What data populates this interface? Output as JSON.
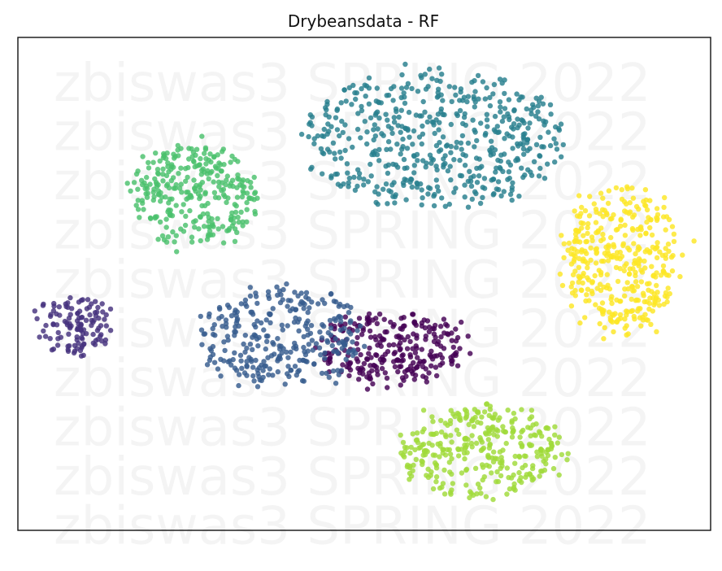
{
  "chart_data": {
    "type": "scatter",
    "title": "Drybeansdata - RF",
    "watermark": "zbiswas3 SPRING 2022",
    "axes": "hidden",
    "grid": false,
    "legend": "none",
    "xlim": [
      0,
      1
    ],
    "ylim": [
      0,
      1
    ],
    "colormap": "viridis",
    "clusters": [
      {
        "name": "c1",
        "color": "#440154",
        "cx": 0.54,
        "cy": 0.37,
        "rx": 0.11,
        "ry": 0.07,
        "n": 260
      },
      {
        "name": "c2",
        "color": "#46327e",
        "cx": 0.085,
        "cy": 0.42,
        "rx": 0.045,
        "ry": 0.06,
        "n": 120
      },
      {
        "name": "c3",
        "color": "#365c8d",
        "cx": 0.38,
        "cy": 0.39,
        "rx": 0.12,
        "ry": 0.1,
        "n": 300
      },
      {
        "name": "c4",
        "color": "#277f8e",
        "cx": 0.6,
        "cy": 0.79,
        "rx": 0.19,
        "ry": 0.14,
        "n": 520
      },
      {
        "name": "c5",
        "color": "#4ac16d",
        "cx": 0.255,
        "cy": 0.68,
        "rx": 0.09,
        "ry": 0.1,
        "n": 300
      },
      {
        "name": "c6",
        "color": "#a0da39",
        "cx": 0.67,
        "cy": 0.16,
        "rx": 0.12,
        "ry": 0.09,
        "n": 330
      },
      {
        "name": "c7",
        "color": "#fde725",
        "cx": 0.87,
        "cy": 0.55,
        "rx": 0.08,
        "ry": 0.15,
        "n": 380
      }
    ]
  }
}
